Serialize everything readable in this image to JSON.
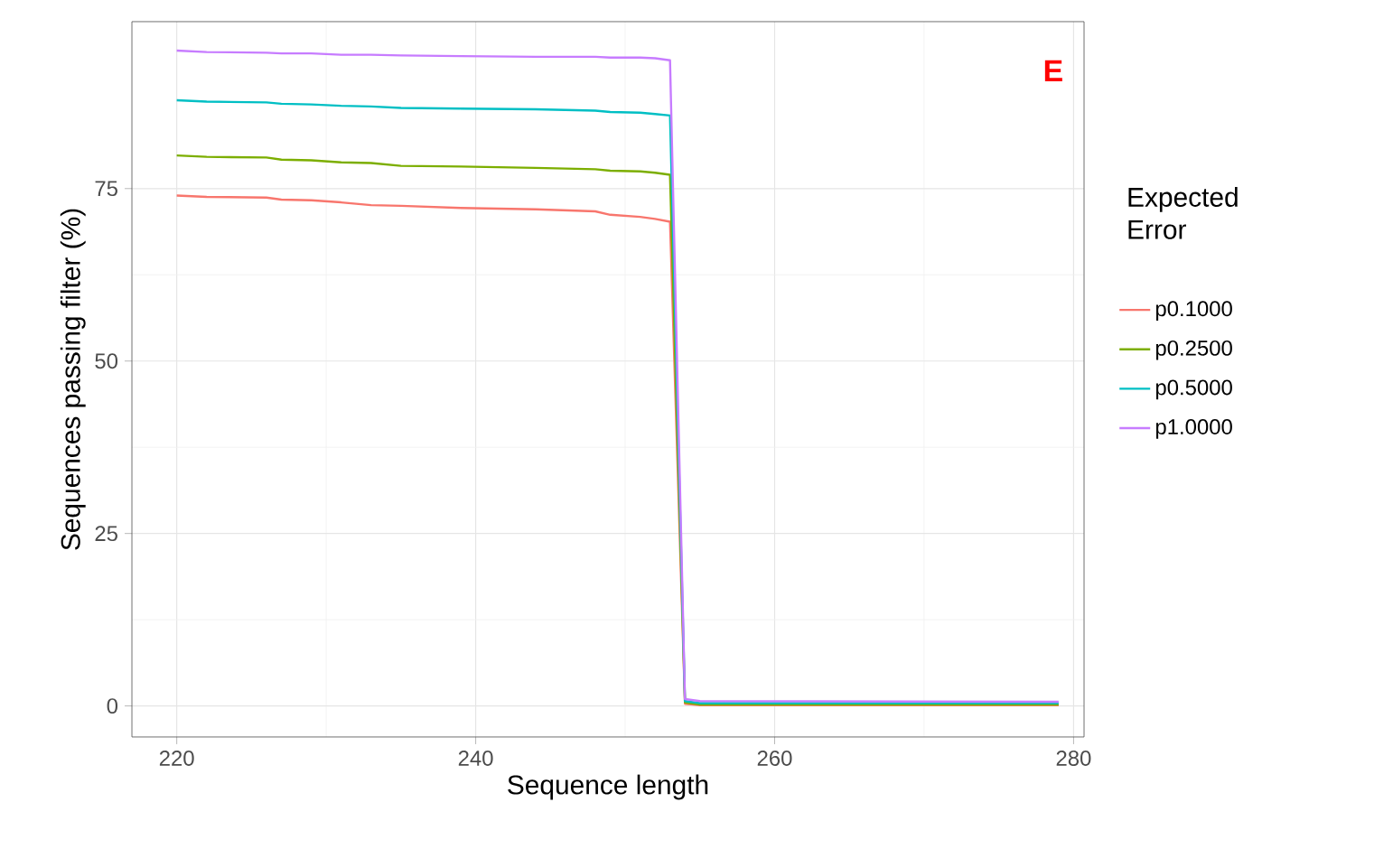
{
  "chart_data": {
    "type": "line",
    "xlabel": "Sequence length",
    "ylabel": "Sequences passing filter (%)",
    "legend_title": "Expected Error",
    "annotations": [
      "E"
    ],
    "x": [
      220,
      222,
      226,
      227,
      229,
      231,
      233,
      235,
      239,
      244,
      248,
      249,
      251,
      252,
      253,
      254,
      255,
      279
    ],
    "series": [
      {
        "name": "p0.1000",
        "color": "#f8766d",
        "values": [
          74.0,
          73.8,
          73.7,
          73.4,
          73.3,
          73.0,
          72.6,
          72.5,
          72.2,
          72.0,
          71.7,
          71.2,
          70.9,
          70.6,
          70.2,
          0.3,
          0.1,
          0.1
        ]
      },
      {
        "name": "p0.2500",
        "color": "#7cae00",
        "values": [
          79.8,
          79.6,
          79.5,
          79.2,
          79.1,
          78.8,
          78.7,
          78.3,
          78.2,
          78.0,
          77.8,
          77.6,
          77.5,
          77.3,
          77.0,
          0.5,
          0.2,
          0.2
        ]
      },
      {
        "name": "p0.5000",
        "color": "#00bfc4",
        "values": [
          87.8,
          87.6,
          87.5,
          87.3,
          87.2,
          87.0,
          86.9,
          86.7,
          86.6,
          86.5,
          86.3,
          86.1,
          86.0,
          85.8,
          85.6,
          0.7,
          0.4,
          0.4
        ]
      },
      {
        "name": "p1.0000",
        "color": "#c77cff",
        "values": [
          95.0,
          94.8,
          94.7,
          94.6,
          94.6,
          94.4,
          94.4,
          94.3,
          94.2,
          94.1,
          94.1,
          94.0,
          94.0,
          93.9,
          93.6,
          1.0,
          0.7,
          0.6
        ]
      }
    ],
    "xlim": [
      217,
      280.7
    ],
    "ylim": [
      -4.5,
      99.2
    ],
    "xticks": [
      220,
      240,
      260,
      280
    ],
    "yticks": [
      0,
      25,
      50,
      75
    ],
    "grid": true,
    "legend": "right",
    "marker": "none",
    "line_style": "solid"
  }
}
